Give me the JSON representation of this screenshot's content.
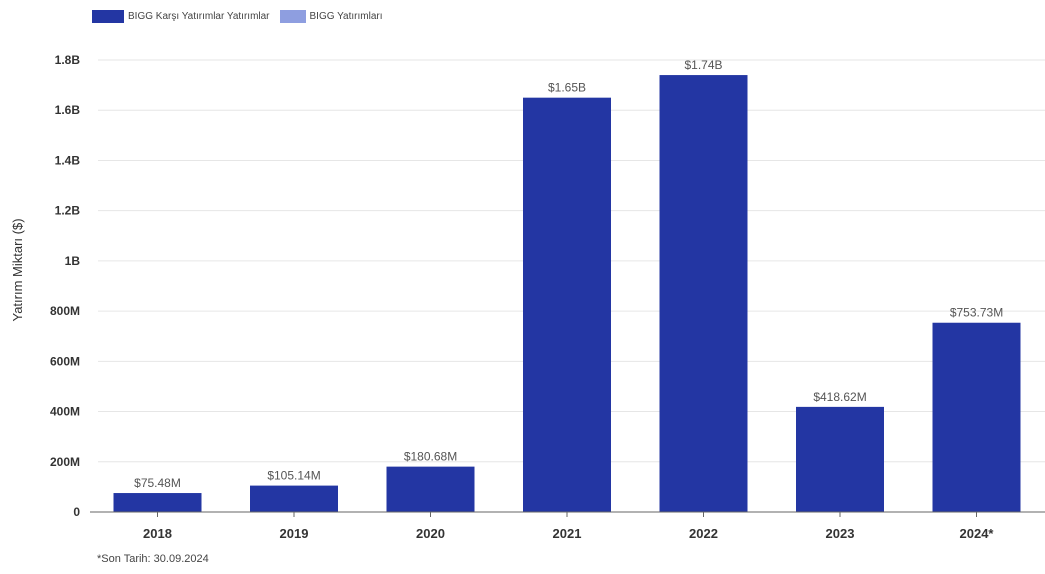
{
  "legend": [
    {
      "label": "BIGG Karşı Yatırımlar Yatırımlar",
      "color": "#2336a3"
    },
    {
      "label": "BIGG Yatırımları",
      "color": "#8e9ee0"
    }
  ],
  "footnote": "*Son Tarih: 30.09.2024",
  "chart_data": {
    "type": "bar",
    "title": "",
    "xlabel": "",
    "ylabel": "Yatırım Miktarı ($)",
    "categories": [
      "2018",
      "2019",
      "2020",
      "2021",
      "2022",
      "2023",
      "2024*"
    ],
    "series": [
      {
        "name": "BIGG Karşı Yatırımlar Yatırımlar",
        "values": [
          75480000,
          105140000,
          180680000,
          1650000000,
          1740000000,
          418620000,
          753730000
        ],
        "labels": [
          "$75.48M",
          "$105.14M",
          "$180.68M",
          "$1.65B",
          "$1.74B",
          "$418.62M",
          "$753.73M"
        ]
      }
    ],
    "yticks": [
      0,
      200000000,
      400000000,
      600000000,
      800000000,
      1000000000,
      1200000000,
      1400000000,
      1600000000,
      1800000000
    ],
    "ytick_labels": [
      "0",
      "200M",
      "400M",
      "600M",
      "800M",
      "1B",
      "1.2B",
      "1.4B",
      "1.6B",
      "1.8B"
    ],
    "ylim": [
      0,
      1850000000
    ],
    "grid": true,
    "legend_position": "top-left",
    "bar_color": "#2336a3"
  }
}
